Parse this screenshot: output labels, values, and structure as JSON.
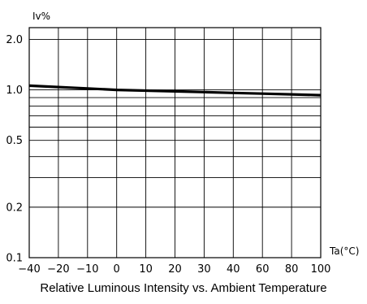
{
  "chart_data": {
    "type": "line",
    "title": "Relative Luminous Intensity vs. Ambient Temperature",
    "ylabel": "Iv%",
    "xlabel": "Ta(°C)",
    "y_scale": "log",
    "ylim": [
      0.1,
      2.35
    ],
    "xlim": [
      -40,
      100
    ],
    "grid": true,
    "x_ticks": [
      -40,
      -20,
      -10,
      0,
      10,
      20,
      30,
      40,
      60,
      80,
      100
    ],
    "x_tick_labels": [
      "-40",
      "-20",
      "-10",
      "0",
      "10",
      "20",
      "30",
      "40",
      "60",
      "80",
      "100"
    ],
    "y_tick_labels": [
      {
        "value": 2.0,
        "label": "2.0"
      },
      {
        "value": 1.0,
        "label": "1.0"
      },
      {
        "value": 0.5,
        "label": "0.5"
      },
      {
        "value": 0.2,
        "label": "0.2"
      },
      {
        "value": 0.1,
        "label": "0.1"
      }
    ],
    "y_gridlines": [
      0.2,
      0.3,
      0.4,
      0.5,
      0.6,
      0.7,
      0.8,
      0.9,
      1.0,
      2.0
    ],
    "series": [
      {
        "x": [
          -40,
          -20,
          -10,
          0,
          10,
          20,
          30,
          40,
          60,
          80,
          100
        ],
        "values": [
          1.06,
          1.04,
          1.02,
          1.0,
          0.99,
          0.98,
          0.97,
          0.96,
          0.95,
          0.94,
          0.93
        ]
      }
    ],
    "line_color": "#000000",
    "grid_color": "#000000"
  }
}
